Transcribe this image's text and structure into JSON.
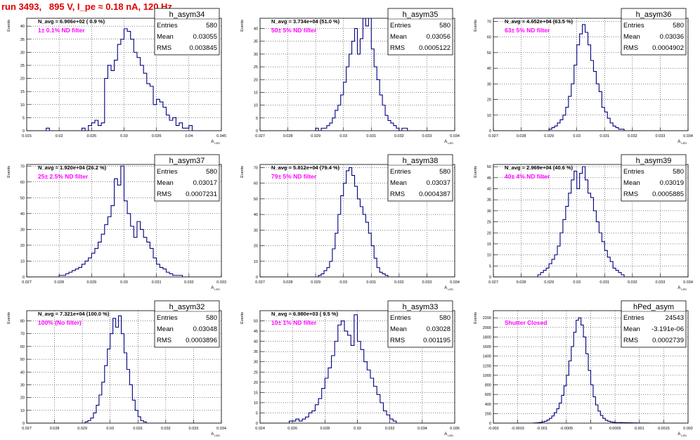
{
  "page": {
    "title": "run 3493,   895 V, I_pe ≈ 0.18 nA, 120 Hz"
  },
  "colors": {
    "line": "#000080",
    "label": "#ff00ff",
    "title": "#e00000",
    "axis": "#000000"
  },
  "chart_data": [
    {
      "type": "histogram",
      "name": "h_asym34",
      "label": "1± 0.1% ND filter",
      "navg": "N_avg = 6.906e+02 ( 0.9 %)",
      "stats": {
        "Entries": "580",
        "Mean": "0.03055",
        "RMS": "0.003845"
      },
      "xlim": [
        0.015,
        0.045
      ],
      "ylim": [
        0,
        43
      ],
      "xlabel": "A_LED",
      "ylabel": "Events",
      "xticks": [
        "0.015",
        "0.02",
        "0.025",
        "0.03",
        "0.035",
        "0.04",
        "0.045"
      ],
      "yticks": [
        0,
        5,
        10,
        15,
        20,
        25,
        30,
        35,
        40
      ],
      "grid": true,
      "bin_start": 0.0155,
      "bin_width": 0.0005,
      "values": [
        0,
        0,
        0,
        0,
        0,
        1,
        0,
        0,
        0,
        0,
        0,
        0,
        0,
        0,
        0,
        0,
        1,
        0,
        2,
        3,
        4,
        2,
        3,
        20,
        25,
        23,
        27,
        33,
        35,
        39,
        38,
        35,
        30,
        28,
        25,
        22,
        18,
        17,
        10,
        12,
        11,
        9,
        6,
        4,
        5,
        2,
        3,
        1,
        1,
        2,
        0,
        0,
        0,
        0,
        0,
        0,
        0,
        0,
        0,
        0
      ]
    },
    {
      "type": "histogram",
      "name": "h_asym35",
      "label": "50± 5% ND filter",
      "navg": "N_avg = 3.734e+04 (51.0 %)",
      "stats": {
        "Entries": "580",
        "Mean": "0.03056",
        "RMS": "0.0005122"
      },
      "xlim": [
        0.027,
        0.034
      ],
      "ylim": [
        0,
        44
      ],
      "xlabel": "A_LED",
      "ylabel": "Events",
      "xticks": [
        "0.027",
        "0.028",
        "0.029",
        "0.03",
        "0.031",
        "0.032",
        "0.033",
        "0.034"
      ],
      "yticks": [
        0,
        5,
        10,
        15,
        20,
        25,
        30,
        35,
        40
      ],
      "grid": true,
      "bin_start": 0.027,
      "bin_width": 0.0001,
      "values": [
        0,
        0,
        0,
        0,
        0,
        0,
        0,
        0,
        0,
        0,
        0,
        0,
        0,
        0,
        0,
        0,
        0,
        0,
        0,
        0,
        1,
        0,
        1,
        1,
        2,
        3,
        5,
        8,
        10,
        14,
        19,
        25,
        30,
        35,
        40,
        30,
        36,
        44,
        41,
        44,
        32,
        25,
        20,
        14,
        10,
        6,
        4,
        3,
        2,
        1,
        0,
        1,
        1,
        0,
        0,
        0,
        0,
        0,
        0,
        0,
        0,
        0,
        0,
        0,
        0,
        0,
        0,
        0,
        0,
        0
      ]
    },
    {
      "type": "histogram",
      "name": "h_asym36",
      "label": "63± 5% ND filter",
      "navg": "N_avg = 4.652e+04 (63.5 %)",
      "stats": {
        "Entries": "580",
        "Mean": "0.03036",
        "RMS": "0.0004902"
      },
      "xlim": [
        0.027,
        0.034
      ],
      "ylim": [
        0,
        72
      ],
      "xlabel": "A_LED",
      "ylabel": "Events",
      "xticks": [
        "0.027",
        "0.028",
        "0.029",
        "0.03",
        "0.031",
        "0.032",
        "0.033",
        "0.034"
      ],
      "yticks": [
        0,
        10,
        20,
        30,
        40,
        50,
        60,
        70
      ],
      "grid": true,
      "bin_start": 0.027,
      "bin_width": 0.0001,
      "values": [
        0,
        0,
        0,
        0,
        0,
        0,
        0,
        0,
        0,
        0,
        0,
        0,
        0,
        0,
        0,
        0,
        0,
        0,
        0,
        0,
        1,
        2,
        3,
        5,
        7,
        10,
        15,
        22,
        30,
        42,
        55,
        62,
        68,
        63,
        55,
        45,
        38,
        30,
        25,
        15,
        12,
        8,
        5,
        3,
        2,
        1,
        1,
        0,
        0,
        0,
        0,
        0,
        0,
        0,
        0,
        0,
        0,
        0,
        0,
        0,
        0,
        0,
        0,
        0,
        0,
        0,
        0,
        0,
        0,
        0
      ]
    },
    {
      "type": "histogram",
      "name": "h_asym37",
      "label": "25± 2.5% ND filter",
      "navg": "N_avg = 1.920e+04 (26.2 %)",
      "stats": {
        "Entries": "580",
        "Mean": "0.03017",
        "RMS": "0.0007231"
      },
      "xlim": [
        0.027,
        0.033
      ],
      "ylim": [
        0,
        71
      ],
      "xlabel": "A_LED",
      "ylabel": "Events",
      "xticks": [
        "0.027",
        "0.028",
        "0.029",
        "0.03",
        "0.031",
        "0.032",
        "0.033"
      ],
      "yticks": [
        0,
        10,
        20,
        30,
        40,
        50,
        60,
        70
      ],
      "grid": true,
      "bin_start": 0.027,
      "bin_width": 0.0001,
      "values": [
        0,
        0,
        0,
        0,
        0,
        0,
        0,
        0,
        0,
        0,
        1,
        1,
        2,
        3,
        4,
        5,
        6,
        8,
        10,
        12,
        15,
        18,
        22,
        27,
        33,
        38,
        45,
        62,
        58,
        70,
        48,
        40,
        32,
        25,
        35,
        30,
        25,
        22,
        18,
        12,
        8,
        6,
        5,
        3,
        2,
        1,
        1,
        1,
        0,
        0,
        0,
        0,
        0,
        0,
        0,
        0,
        0,
        0,
        0,
        0
      ]
    },
    {
      "type": "histogram",
      "name": "h_asym38",
      "label": "79± 5% ND filter",
      "navg": "N_avg = 5.812e+04 (79.4 %)",
      "stats": {
        "Entries": "580",
        "Mean": "0.03037",
        "RMS": "0.0004387"
      },
      "xlim": [
        0.027,
        0.034
      ],
      "ylim": [
        0,
        72
      ],
      "xlabel": "A_LED",
      "ylabel": "Events",
      "xticks": [
        "0.027",
        "0.028",
        "0.029",
        "0.03",
        "0.031",
        "0.032",
        "0.033",
        "0.034"
      ],
      "yticks": [
        0,
        10,
        20,
        30,
        40,
        50,
        60,
        70
      ],
      "grid": true,
      "bin_start": 0.027,
      "bin_width": 0.0001,
      "values": [
        0,
        0,
        0,
        0,
        0,
        0,
        0,
        0,
        0,
        0,
        0,
        0,
        0,
        0,
        0,
        0,
        0,
        0,
        0,
        0,
        0,
        1,
        2,
        4,
        6,
        10,
        18,
        28,
        40,
        52,
        60,
        68,
        70,
        65,
        58,
        50,
        45,
        40,
        35,
        28,
        20,
        12,
        6,
        3,
        2,
        1,
        0,
        0,
        0,
        0,
        0,
        0,
        0,
        0,
        0,
        0,
        0,
        0,
        0,
        0,
        0,
        0,
        0,
        0,
        0,
        0,
        0,
        0,
        0,
        0
      ]
    },
    {
      "type": "histogram",
      "name": "h_asym39",
      "label": "40± 4% ND filter",
      "navg": "N_avg = 2.969e+04 (40.6 %)",
      "stats": {
        "Entries": "580",
        "Mean": "0.03019",
        "RMS": "0.0005885"
      },
      "xlim": [
        0.027,
        0.034
      ],
      "ylim": [
        0,
        51
      ],
      "xlabel": "A_LED",
      "ylabel": "Events",
      "xticks": [
        "0.027",
        "0.028",
        "0.029",
        "0.03",
        "0.031",
        "0.032",
        "0.033",
        "0.034"
      ],
      "yticks": [
        0,
        5,
        10,
        15,
        20,
        25,
        30,
        35,
        40,
        45,
        50
      ],
      "grid": true,
      "bin_start": 0.027,
      "bin_width": 0.0001,
      "values": [
        0,
        0,
        0,
        0,
        0,
        0,
        0,
        0,
        0,
        0,
        0,
        0,
        0,
        0,
        0,
        0,
        1,
        2,
        3,
        4,
        6,
        8,
        10,
        14,
        20,
        26,
        32,
        38,
        44,
        48,
        40,
        47,
        50,
        44,
        38,
        36,
        30,
        25,
        20,
        16,
        12,
        9,
        7,
        4,
        3,
        2,
        1,
        0,
        0,
        0,
        0,
        0,
        0,
        0,
        0,
        0,
        0,
        0,
        0,
        0,
        0,
        0,
        0,
        0,
        0,
        0,
        0,
        0,
        0,
        0
      ]
    },
    {
      "type": "histogram",
      "name": "h_asym32",
      "label": "100% (No filter)",
      "navg": "N_avg = 7.321e+04 (100.0 %)",
      "stats": {
        "Entries": "580",
        "Mean": "0.03048",
        "RMS": "0.0003896"
      },
      "xlim": [
        0.027,
        0.034
      ],
      "ylim": [
        0,
        88
      ],
      "xlabel": "A_LED",
      "ylabel": "Events",
      "xticks": [
        "0.027",
        "0.028",
        "0.029",
        "0.03",
        "0.031",
        "0.032",
        "0.033",
        "0.034"
      ],
      "yticks": [
        0,
        10,
        20,
        30,
        40,
        50,
        60,
        70,
        80
      ],
      "grid": true,
      "bin_start": 0.027,
      "bin_width": 0.0001,
      "values": [
        0,
        0,
        0,
        0,
        0,
        0,
        0,
        0,
        0,
        0,
        0,
        0,
        0,
        0,
        0,
        0,
        0,
        0,
        0,
        0,
        0,
        1,
        2,
        4,
        8,
        14,
        22,
        32,
        45,
        58,
        70,
        82,
        75,
        84,
        70,
        55,
        42,
        30,
        18,
        10,
        5,
        2,
        1,
        0,
        0,
        0,
        0,
        0,
        0,
        0,
        0,
        0,
        0,
        0,
        0,
        0,
        0,
        0,
        0,
        0,
        0,
        0,
        0,
        0,
        0,
        0,
        0,
        0,
        0,
        0
      ]
    },
    {
      "type": "histogram",
      "name": "h_asym33",
      "label": "10± 1% ND filter",
      "navg": "N_avg = 6.980e+03 ( 9.5 %)",
      "stats": {
        "Entries": "580",
        "Mean": "0.03028",
        "RMS": "0.001195"
      },
      "xlim": [
        0.024,
        0.036
      ],
      "ylim": [
        0,
        55
      ],
      "xlabel": "A_LED",
      "ylabel": "Events",
      "xticks": [
        "0.024",
        "0.026",
        "0.028",
        "0.03",
        "0.032",
        "0.034",
        "0.036"
      ],
      "yticks": [
        0,
        5,
        10,
        15,
        20,
        25,
        30,
        35,
        40,
        45,
        50
      ],
      "grid": true,
      "bin_start": 0.024,
      "bin_width": 0.0002,
      "values": [
        0,
        0,
        0,
        0,
        0,
        0,
        0,
        0,
        0,
        1,
        1,
        2,
        1,
        2,
        3,
        5,
        6,
        9,
        12,
        17,
        22,
        27,
        33,
        40,
        48,
        50,
        45,
        43,
        38,
        53,
        40,
        36,
        30,
        26,
        22,
        18,
        14,
        10,
        6,
        4,
        2,
        1,
        0,
        0,
        0,
        0,
        0,
        0,
        0,
        0,
        0,
        0,
        0,
        0,
        0,
        0,
        0,
        0,
        0,
        0
      ]
    },
    {
      "type": "histogram",
      "name": "hPed_asym",
      "label": "Shutter Closed",
      "navg": "",
      "stats": {
        "Entries": "24543",
        "Mean": "-3.191e-06",
        "RMS": "0.0002739"
      },
      "xlim": [
        -0.002,
        0.002
      ],
      "ylim": [
        0,
        2350
      ],
      "xlabel": "A_LED",
      "ylabel": "Events",
      "xticks": [
        "-0.002",
        "-0.0015",
        "-0.001",
        "-0.0005",
        "0",
        "0.0005",
        "0.001",
        "0.0015",
        "0.002"
      ],
      "yticks": [
        0,
        200,
        400,
        600,
        800,
        1000,
        1200,
        1400,
        1600,
        1800,
        2000,
        2200
      ],
      "grid": true,
      "bin_start": -0.002,
      "bin_width": 5e-05,
      "values": [
        0,
        0,
        0,
        0,
        0,
        0,
        0,
        0,
        0,
        0,
        0,
        0,
        0,
        0,
        0,
        0,
        2,
        4,
        8,
        15,
        25,
        40,
        65,
        100,
        150,
        220,
        300,
        420,
        580,
        780,
        1000,
        1300,
        1600,
        1900,
        2150,
        2200,
        2050,
        1800,
        1450,
        1100,
        800,
        550,
        380,
        250,
        160,
        100,
        60,
        40,
        25,
        18,
        12,
        10,
        12,
        10,
        8,
        8,
        6,
        5,
        4,
        3,
        2,
        2,
        1,
        1,
        0,
        0,
        0,
        0,
        0,
        0,
        0,
        0,
        0,
        0,
        0,
        0,
        0,
        0,
        0,
        0
      ]
    }
  ]
}
